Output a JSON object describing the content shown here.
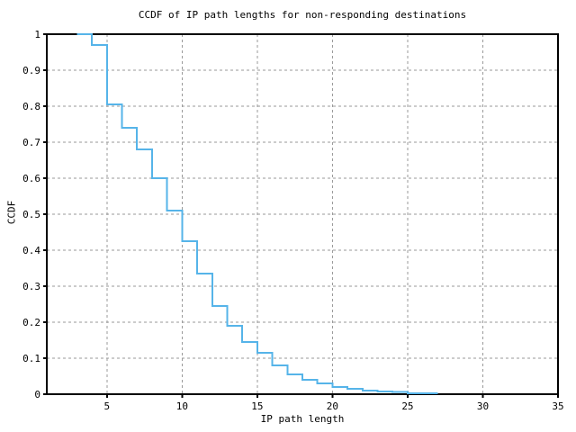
{
  "chart_data": {
    "type": "line",
    "subtype": "step-post-ccdf",
    "title": "CCDF of IP path lengths for non-responding destinations",
    "xlabel": "IP path length",
    "ylabel": "CCDF",
    "xlim": [
      1,
      35
    ],
    "ylim": [
      0,
      1
    ],
    "x_ticks": [
      5,
      10,
      15,
      20,
      25,
      30,
      35
    ],
    "x_tick_labels": [
      "5",
      "10",
      "15",
      "20",
      "25",
      "30",
      "35"
    ],
    "y_ticks": [
      0,
      0.1,
      0.2,
      0.3,
      0.4,
      0.5,
      0.6,
      0.7,
      0.8,
      0.9,
      1
    ],
    "y_tick_labels": [
      "0",
      "0.1",
      "0.2",
      "0.3",
      "0.4",
      "0.5",
      "0.6",
      "0.7",
      "0.8",
      "0.9",
      "1"
    ],
    "grid": true,
    "grid_style": "dashed",
    "legend": "none",
    "colors": {
      "line": "#56b4e9",
      "grid": "#9a9a9a",
      "frame": "#000000",
      "background": "#ffffff"
    },
    "series": [
      {
        "name": "CCDF of IP path lengths",
        "step": "post",
        "x": [
          3,
          4,
          5,
          6,
          7,
          8,
          9,
          10,
          11,
          12,
          13,
          14,
          15,
          16,
          17,
          18,
          19,
          20,
          21,
          22,
          23,
          24,
          25
        ],
        "y": [
          1.0,
          0.97,
          0.805,
          0.74,
          0.68,
          0.6,
          0.51,
          0.425,
          0.335,
          0.245,
          0.19,
          0.145,
          0.115,
          0.08,
          0.055,
          0.04,
          0.03,
          0.02,
          0.015,
          0.01,
          0.008,
          0.006,
          0.002
        ],
        "end_x": 27
      }
    ]
  }
}
